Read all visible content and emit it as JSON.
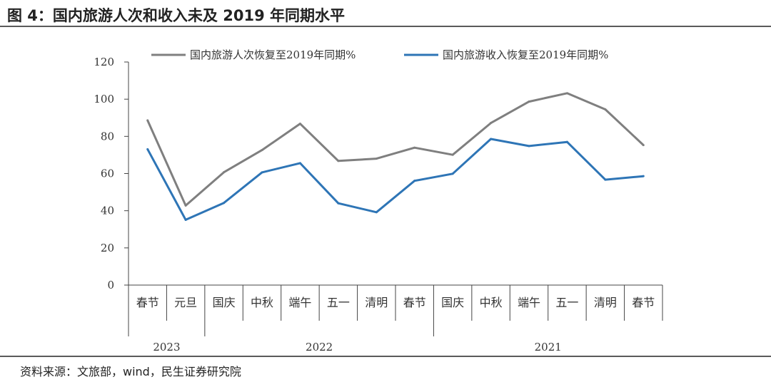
{
  "header": {
    "title": "图 4：国内旅游人次和收入未及 2019 年同期水平"
  },
  "footer": {
    "source": "资料来源：文旅部，wind，民生证券研究院"
  },
  "colors": {
    "series_person": "#7f7f7f",
    "series_income": "#2e75b6"
  },
  "chart_data": {
    "type": "line",
    "title": "",
    "xlabel": "",
    "ylabel": "",
    "ylim": [
      0,
      120
    ],
    "yticks": [
      0,
      20,
      40,
      60,
      80,
      100,
      120
    ],
    "legend_position": "top",
    "grid": false,
    "categories": [
      "春节",
      "元旦",
      "国庆",
      "中秋",
      "端午",
      "五一",
      "清明",
      "春节",
      "国庆",
      "中秋",
      "端午",
      "五一",
      "清明",
      "春节"
    ],
    "year_groups": [
      {
        "label": "2023",
        "count": 2
      },
      {
        "label": "2022",
        "count": 6
      },
      {
        "label": "2021",
        "count": 6
      }
    ],
    "series": [
      {
        "name": "国内旅游人次恢复至2019年同期%",
        "values": [
          88.6,
          42.8,
          60.7,
          72.6,
          86.8,
          66.8,
          68.0,
          73.9,
          70.1,
          87.2,
          98.7,
          103.2,
          94.5,
          75.3
        ]
      },
      {
        "name": "国内旅游收入恢复至2019年同期%",
        "values": [
          73.1,
          35.1,
          44.2,
          60.6,
          65.6,
          44.0,
          39.2,
          56.1,
          59.9,
          78.6,
          74.8,
          77.0,
          56.7,
          58.6
        ]
      }
    ]
  }
}
